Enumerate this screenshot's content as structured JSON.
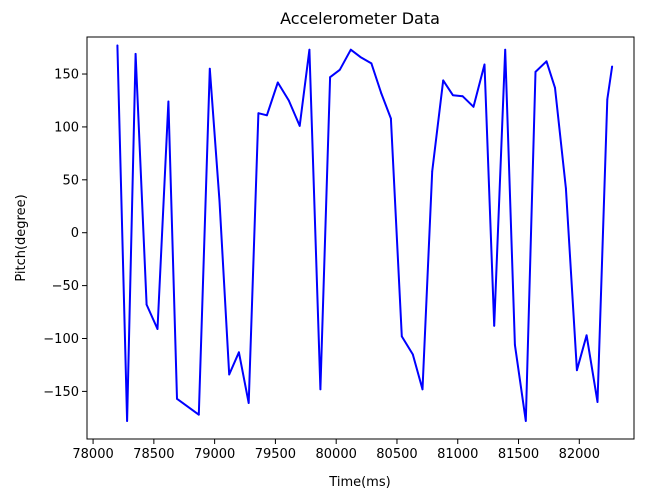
{
  "chart_data": {
    "type": "line",
    "title": "Accelerometer Data",
    "xlabel": "Time(ms)",
    "ylabel": "Pitch(degree)",
    "xlim": [
      77950,
      82450
    ],
    "ylim": [
      -195,
      185
    ],
    "xticks": [
      {
        "value": 78000,
        "label": "78000"
      },
      {
        "value": 78500,
        "label": "78500"
      },
      {
        "value": 79000,
        "label": "79000"
      },
      {
        "value": 79500,
        "label": "79500"
      },
      {
        "value": 80000,
        "label": "80000"
      },
      {
        "value": 80500,
        "label": "80500"
      },
      {
        "value": 81000,
        "label": "81000"
      },
      {
        "value": 81500,
        "label": "81500"
      },
      {
        "value": 82000,
        "label": "82000"
      }
    ],
    "yticks": [
      {
        "value": 150,
        "label": "150"
      },
      {
        "value": 100,
        "label": "100"
      },
      {
        "value": 50,
        "label": "50"
      },
      {
        "value": 0,
        "label": "0"
      },
      {
        "value": -50,
        "label": "−50"
      },
      {
        "value": -100,
        "label": "−100"
      },
      {
        "value": -150,
        "label": "−150"
      }
    ],
    "grid": false,
    "series": [
      {
        "color": "#0000ff",
        "x": [
          78200,
          78280,
          78350,
          78440,
          78530,
          78620,
          78690,
          78870,
          78960,
          79040,
          79120,
          79200,
          79280,
          79360,
          79430,
          79520,
          79610,
          79700,
          79780,
          79870,
          79950,
          80030,
          80120,
          80200,
          80290,
          80370,
          80450,
          80540,
          80630,
          80710,
          80790,
          80880,
          80960,
          81040,
          81130,
          81220,
          81300,
          81390,
          81470,
          81560,
          81640,
          81730,
          81800,
          81890,
          81980,
          82060,
          82150,
          82230,
          82270
        ],
        "y": [
          177,
          -178,
          169,
          -68,
          -91,
          124,
          -157,
          -172,
          155,
          30,
          -134,
          -113,
          -161,
          113,
          111,
          142,
          125,
          101,
          173,
          -148,
          147,
          154,
          173,
          166,
          160,
          132,
          108,
          -98,
          -115,
          -148,
          58,
          144,
          130,
          129,
          119,
          159,
          -88,
          173,
          -106,
          -178,
          152,
          162,
          137,
          42,
          -130,
          -97,
          -160,
          126,
          157
        ]
      }
    ]
  }
}
